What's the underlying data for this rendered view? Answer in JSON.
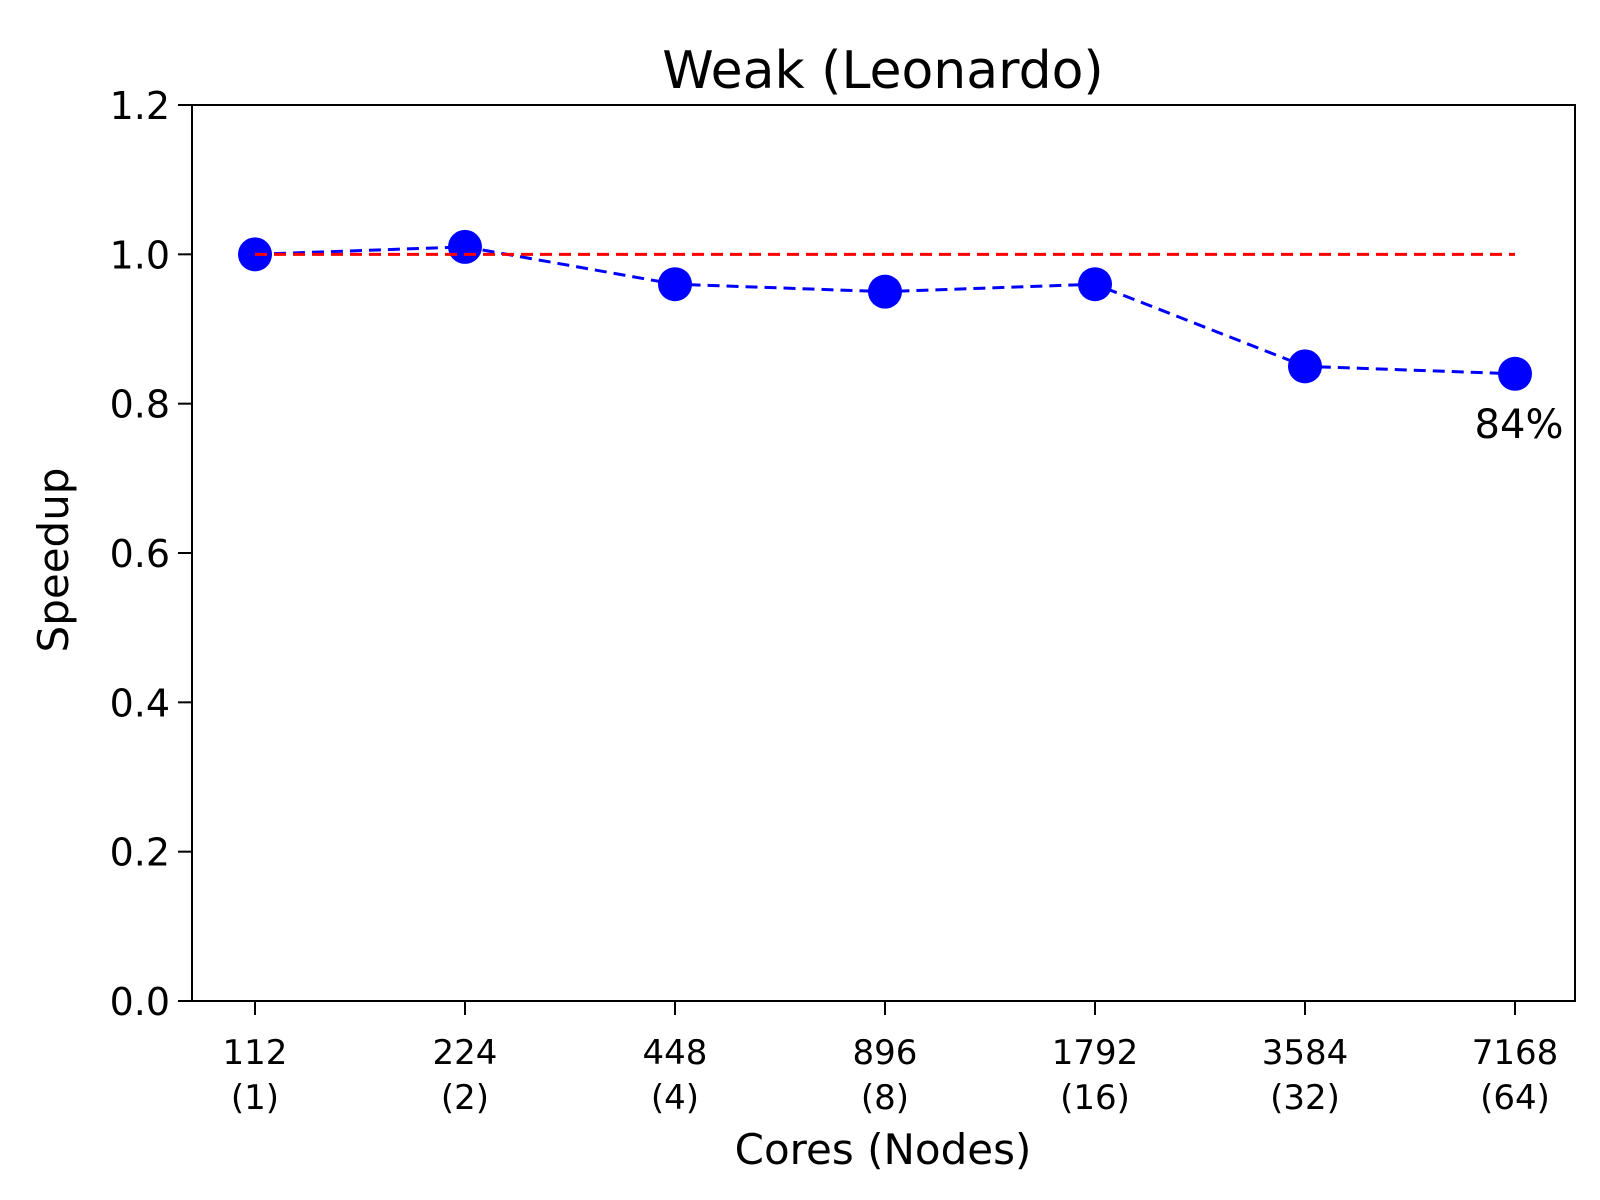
{
  "chart_data": {
    "type": "line",
    "title": "Weak (Leonardo)",
    "xlabel": "Cores (Nodes)",
    "ylabel": "Speedup",
    "categories": [
      [
        "112",
        "(1)"
      ],
      [
        "224",
        "(2)"
      ],
      [
        "448",
        "(4)"
      ],
      [
        "896",
        "(8)"
      ],
      [
        "1792",
        "(16)"
      ],
      [
        "3584",
        "(32)"
      ],
      [
        "7168",
        "(64)"
      ]
    ],
    "ylim": [
      0,
      1.2
    ],
    "yticks": [
      "0.0",
      "0.2",
      "0.4",
      "0.6",
      "0.8",
      "1.0",
      "1.2"
    ],
    "grid": false,
    "series": [
      {
        "values": [
          1.0,
          1.01,
          0.96,
          0.95,
          0.96,
          0.85,
          0.84
        ],
        "color": "#0000ff",
        "line_style": "dashed",
        "marker": "circle"
      },
      {
        "values": [
          1.0,
          1.0,
          1.0,
          1.0,
          1.0,
          1.0,
          1.0
        ],
        "color": "#ff0000",
        "line_style": "dashed",
        "marker": "none"
      }
    ],
    "annotations": [
      {
        "text": "84%",
        "category_index": 6,
        "position": "below"
      }
    ]
  }
}
